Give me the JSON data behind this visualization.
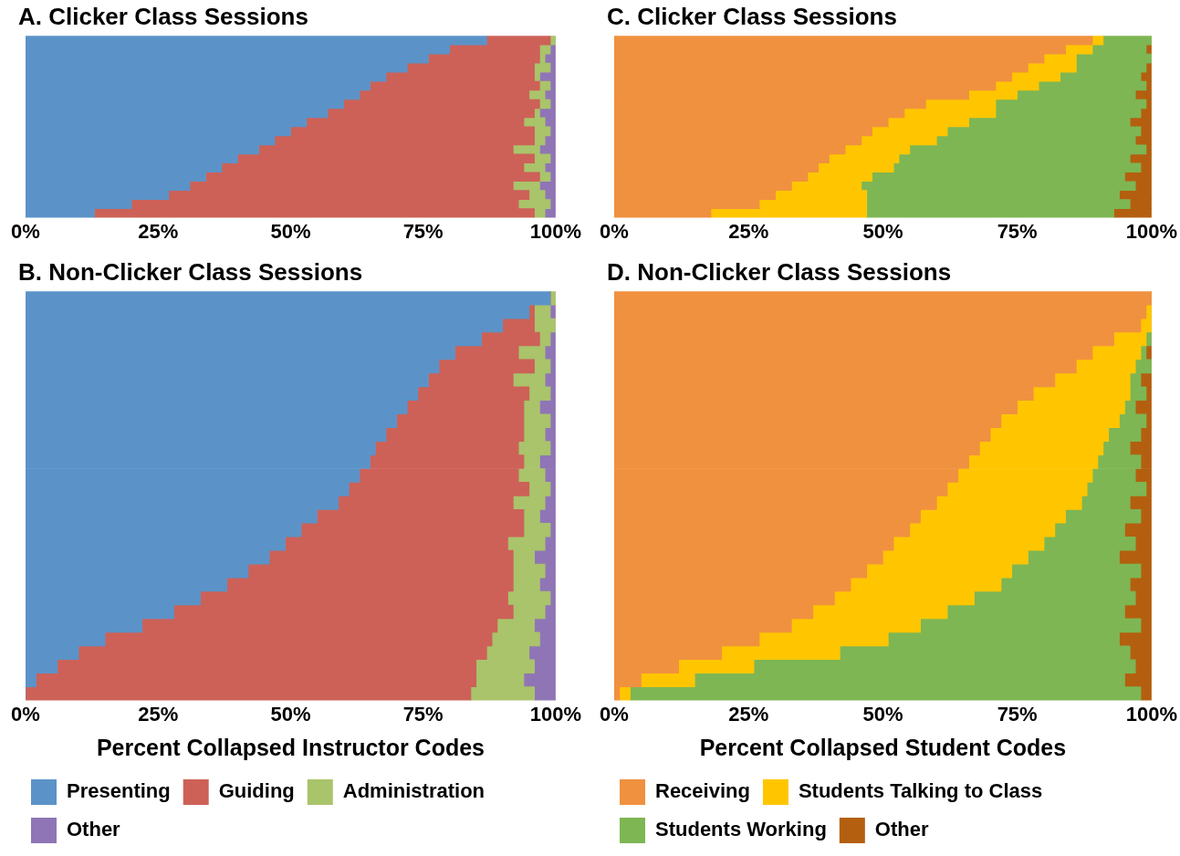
{
  "chart_data": [
    {
      "type": "bar",
      "orientation": "horizontal",
      "stacked": true,
      "title": "A. Clicker Class Sessions",
      "categories": [
        null,
        null,
        null,
        null,
        null,
        null,
        null,
        null,
        null,
        null,
        null,
        null,
        null,
        null,
        null,
        null,
        null,
        null,
        null,
        null
      ],
      "xlim": [
        0,
        100
      ],
      "xticks": [
        {
          "value": 0,
          "label": "0%"
        },
        {
          "value": 25,
          "label": "25%"
        },
        {
          "value": 50,
          "label": "50%"
        },
        {
          "value": 75,
          "label": "75%"
        },
        {
          "value": 100,
          "label": "100%"
        }
      ],
      "tick_labels": "x",
      "legend": false,
      "series": [
        {
          "color": "#5b93c8",
          "values": [
            87,
            80,
            76,
            72,
            68,
            65,
            63,
            60,
            57,
            53,
            50,
            47,
            44,
            40,
            37,
            34,
            31,
            27,
            20,
            13
          ]
        },
        {
          "color": "#cd6158",
          "values": [
            12,
            17,
            21,
            24,
            28,
            32,
            32,
            37,
            39,
            41,
            46,
            49,
            48,
            56,
            57,
            63,
            61,
            68,
            73,
            83
          ]
        },
        {
          "color": "#a9c46b",
          "values": [
            1,
            2,
            1,
            3,
            1,
            2,
            3,
            2,
            1,
            4,
            3,
            2,
            5,
            3,
            4,
            2,
            5,
            3,
            6,
            2
          ]
        },
        {
          "color": "#8f75b5",
          "values": [
            0,
            1,
            2,
            1,
            3,
            1,
            2,
            1,
            3,
            2,
            1,
            2,
            3,
            1,
            2,
            1,
            3,
            2,
            1,
            2
          ]
        }
      ]
    },
    {
      "type": "bar",
      "orientation": "horizontal",
      "stacked": true,
      "title": "B. Non-Clicker Class Sessions",
      "xlabel": "Percent Collapsed Instructor Codes",
      "categories": [
        null,
        null,
        null,
        null,
        null,
        null,
        null,
        null,
        null,
        null,
        null,
        null,
        null,
        null,
        null,
        null,
        null,
        null,
        null,
        null,
        null,
        null,
        null,
        null,
        null,
        null,
        null,
        null,
        null,
        null
      ],
      "xlim": [
        0,
        100
      ],
      "xticks": [
        {
          "value": 0,
          "label": "0%"
        },
        {
          "value": 25,
          "label": "25%"
        },
        {
          "value": 50,
          "label": "50%"
        },
        {
          "value": 75,
          "label": "75%"
        },
        {
          "value": 100,
          "label": "100%"
        }
      ],
      "tick_labels": "x",
      "legend": "bottom",
      "series": [
        {
          "name": "Presenting",
          "color": "#5b93c8",
          "values": [
            99,
            95,
            90,
            86,
            81,
            78,
            76,
            74,
            72,
            70,
            68,
            66,
            65,
            63,
            61,
            59,
            55,
            52,
            49,
            46,
            42,
            38,
            33,
            28,
            22,
            15,
            10,
            6,
            2,
            0
          ]
        },
        {
          "name": "Guiding",
          "color": "#cd6158",
          "values": [
            0,
            1,
            6,
            11,
            12,
            18,
            16,
            21,
            22,
            24,
            26,
            27,
            29,
            30,
            34,
            33,
            39,
            42,
            42,
            46,
            50,
            54,
            58,
            64,
            67,
            73,
            77,
            79,
            83,
            84
          ]
        },
        {
          "name": "Administration",
          "color": "#a9c46b",
          "values": [
            1,
            3,
            4,
            2,
            5,
            3,
            6,
            4,
            3,
            5,
            4,
            6,
            3,
            5,
            4,
            6,
            3,
            5,
            7,
            4,
            6,
            5,
            8,
            6,
            7,
            9,
            8,
            11,
            9,
            12
          ]
        },
        {
          "name": "Other",
          "color": "#8f75b5",
          "values": [
            0,
            1,
            0,
            1,
            2,
            1,
            2,
            1,
            3,
            1,
            2,
            1,
            3,
            2,
            1,
            2,
            3,
            1,
            2,
            4,
            2,
            3,
            1,
            2,
            4,
            3,
            5,
            4,
            6,
            4
          ]
        }
      ]
    },
    {
      "type": "bar",
      "orientation": "horizontal",
      "stacked": true,
      "title": "C. Clicker Class Sessions",
      "categories": [
        null,
        null,
        null,
        null,
        null,
        null,
        null,
        null,
        null,
        null,
        null,
        null,
        null,
        null,
        null,
        null,
        null,
        null,
        null,
        null
      ],
      "xlim": [
        0,
        100
      ],
      "xticks": [
        {
          "value": 0,
          "label": "0%"
        },
        {
          "value": 25,
          "label": "25%"
        },
        {
          "value": 50,
          "label": "50%"
        },
        {
          "value": 75,
          "label": "75%"
        },
        {
          "value": 100,
          "label": "100%"
        }
      ],
      "tick_labels": "x",
      "legend": false,
      "series": [
        {
          "color": "#f0913f",
          "values": [
            89,
            84,
            80,
            77,
            74,
            71,
            66,
            58,
            54,
            51,
            48,
            46,
            43,
            40,
            38,
            36,
            33,
            30,
            27,
            18
          ]
        },
        {
          "color": "#ffc600",
          "values": [
            2,
            5,
            6,
            9,
            9,
            8,
            9,
            13,
            17,
            15,
            14,
            14,
            12,
            13,
            14,
            12,
            13,
            17,
            20,
            29
          ]
        },
        {
          "color": "#7eb653",
          "values": [
            9,
            10,
            14,
            13,
            15,
            20,
            22,
            28,
            27,
            30,
            36,
            37,
            44,
            43,
            46,
            47,
            51,
            47,
            49,
            46
          ]
        },
        {
          "color": "#b45f0f",
          "values": [
            0,
            1,
            0,
            1,
            2,
            1,
            3,
            1,
            2,
            4,
            2,
            3,
            1,
            4,
            2,
            5,
            3,
            6,
            4,
            7
          ]
        }
      ]
    },
    {
      "type": "bar",
      "orientation": "horizontal",
      "stacked": true,
      "title": "D. Non-Clicker Class Sessions",
      "xlabel": "Percent Collapsed Student Codes",
      "categories": [
        null,
        null,
        null,
        null,
        null,
        null,
        null,
        null,
        null,
        null,
        null,
        null,
        null,
        null,
        null,
        null,
        null,
        null,
        null,
        null,
        null,
        null,
        null,
        null,
        null,
        null,
        null,
        null,
        null,
        null
      ],
      "xlim": [
        0,
        100
      ],
      "xticks": [
        {
          "value": 0,
          "label": "0%"
        },
        {
          "value": 25,
          "label": "25%"
        },
        {
          "value": 50,
          "label": "50%"
        },
        {
          "value": 75,
          "label": "75%"
        },
        {
          "value": 100,
          "label": "100%"
        }
      ],
      "tick_labels": "x",
      "legend": "bottom",
      "series": [
        {
          "name": "Receiving",
          "color": "#f0913f",
          "values": [
            100,
            99,
            98,
            93,
            89,
            86,
            82,
            78,
            75,
            72,
            70,
            68,
            66,
            64,
            62,
            60,
            57,
            55,
            52,
            50,
            47,
            44,
            41,
            37,
            33,
            27,
            20,
            12,
            5,
            1
          ]
        },
        {
          "name": "Students Talking to Class",
          "color": "#ffc600",
          "values": [
            0,
            1,
            2,
            6,
            9,
            11,
            14,
            18,
            20,
            22,
            22,
            23,
            24,
            25,
            26,
            27,
            27,
            27,
            28,
            27,
            27,
            28,
            26,
            25,
            24,
            24,
            22,
            14,
            10,
            2
          ]
        },
        {
          "name": "Students Working",
          "color": "#7eb653",
          "values": [
            0,
            0,
            0,
            1,
            1,
            3,
            2,
            3,
            2,
            5,
            6,
            5,
            8,
            8,
            11,
            9,
            14,
            13,
            17,
            17,
            24,
            24,
            30,
            33,
            41,
            43,
            54,
            71,
            80,
            95
          ]
        },
        {
          "name": "Other",
          "color": "#b45f0f",
          "values": [
            0,
            0,
            0,
            0,
            1,
            0,
            2,
            1,
            3,
            1,
            2,
            4,
            2,
            3,
            1,
            4,
            2,
            5,
            3,
            6,
            2,
            4,
            3,
            5,
            2,
            6,
            4,
            3,
            5,
            2
          ]
        }
      ]
    }
  ]
}
